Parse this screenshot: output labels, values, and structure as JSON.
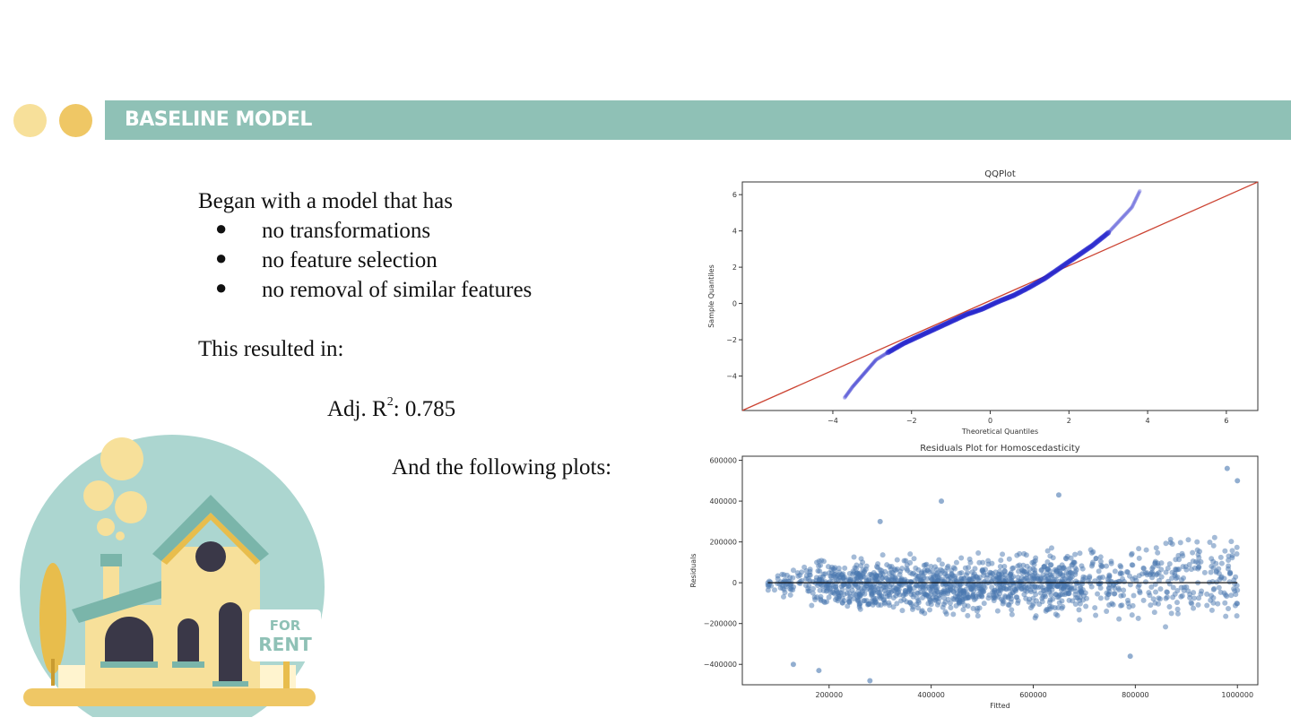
{
  "header": {
    "title": "BASELINE MODEL"
  },
  "content": {
    "intro": "Began with a model that has",
    "bullets": [
      "no transformations",
      "no feature selection",
      "no removal of similar features"
    ],
    "bullet_glyph": "●",
    "resulted": "This resulted in:",
    "metric_label": "Adj. R",
    "metric_sup": "2",
    "metric_value": ": 0.785",
    "following": "And the following plots:"
  },
  "illustration": {
    "sign_line1": "FOR",
    "sign_line2": "RENT",
    "icon": "house-for-rent-illustration"
  },
  "colors": {
    "banner": "#8fc1b6",
    "dot_light": "#f7e09a",
    "dot_dark": "#efc765",
    "qq_points": "#2222cc",
    "qq_line": "#cc4433",
    "resid_points": "#4a78b0"
  },
  "chart_data": [
    {
      "type": "scatter",
      "title": "QQPlot",
      "xlabel": "Theoretical Quantiles",
      "ylabel": "Sample Quantiles",
      "xlim": [
        -6.3,
        6.8
      ],
      "ylim": [
        -5.9,
        6.7
      ],
      "xticks": [
        -4,
        -2,
        0,
        2,
        4,
        6
      ],
      "yticks": [
        -4,
        -2,
        0,
        2,
        4,
        6
      ],
      "reference_line": {
        "from": [
          -6.3,
          -5.9
        ],
        "to": [
          6.8,
          6.7
        ]
      },
      "series": [
        {
          "x": [
            -3.7,
            -3.5,
            -3.3,
            -3.1,
            -2.9,
            -2.6,
            -2.2,
            -1.8,
            -1.4,
            -1.0,
            -0.6,
            -0.2,
            0.2,
            0.6,
            1.0,
            1.4,
            1.8,
            2.2,
            2.6,
            3.0,
            3.3,
            3.6,
            3.8
          ],
          "y": [
            -5.2,
            -4.6,
            -4.1,
            -3.6,
            -3.1,
            -2.7,
            -2.2,
            -1.8,
            -1.4,
            -1.0,
            -0.6,
            -0.3,
            0.1,
            0.45,
            0.9,
            1.4,
            2.0,
            2.6,
            3.2,
            3.9,
            4.6,
            5.3,
            6.2
          ]
        }
      ]
    },
    {
      "type": "scatter",
      "title": "Residuals Plot for Homoscedasticity",
      "xlabel": "Fitted",
      "ylabel": "Residuals",
      "xlim": [
        30000,
        1040000
      ],
      "ylim": [
        -500000,
        620000
      ],
      "xticks": [
        200000,
        400000,
        600000,
        800000,
        1000000
      ],
      "yticks": [
        -400000,
        -200000,
        0,
        200000,
        400000,
        600000
      ],
      "reference_line_y": 0,
      "reference_line_x": [
        80000,
        1000000
      ],
      "band": {
        "x": [
          80000,
          200000,
          400000,
          600000,
          800000,
          1000000
        ],
        "upper": [
          60000,
          150000,
          160000,
          190000,
          260000,
          320000
        ],
        "lower": [
          -60000,
          -170000,
          -190000,
          -200000,
          -220000,
          -280000
        ]
      },
      "outliers": [
        {
          "x": 130000,
          "y": -400000
        },
        {
          "x": 180000,
          "y": -430000
        },
        {
          "x": 280000,
          "y": -480000
        },
        {
          "x": 420000,
          "y": 400000
        },
        {
          "x": 650000,
          "y": 430000
        },
        {
          "x": 790000,
          "y": -360000
        },
        {
          "x": 980000,
          "y": 560000
        },
        {
          "x": 300000,
          "y": 300000
        },
        {
          "x": 1000000,
          "y": 500000
        }
      ]
    }
  ]
}
